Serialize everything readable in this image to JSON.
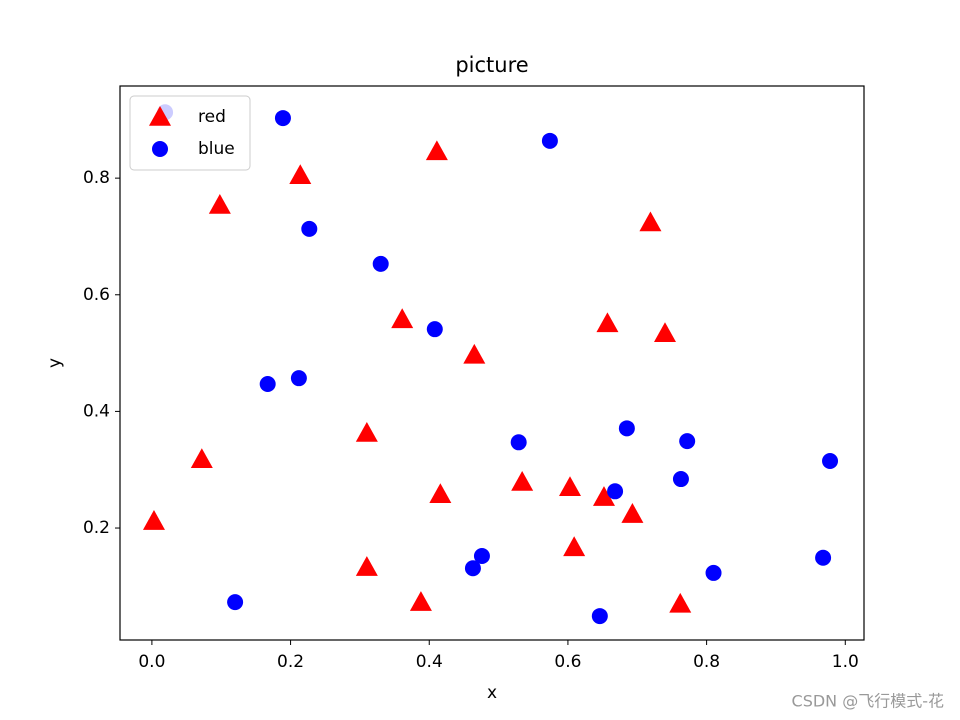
{
  "chart_data": {
    "type": "scatter",
    "title": "picture",
    "x_label": "x",
    "y_label": "y",
    "xlim": [
      -0.046,
      1.027
    ],
    "ylim": [
      0.008,
      0.958
    ],
    "xticks": [
      {
        "value": 0,
        "label": "0.0"
      },
      0.2,
      0.4,
      0.6,
      0.8,
      {
        "value": 1,
        "label": "1.0"
      }
    ],
    "yticks": [
      0.2,
      0.4,
      0.6,
      0.8
    ],
    "legend": "upper left",
    "series": [
      {
        "name": "red",
        "color": "#ff0000",
        "marker": "triangle",
        "x": [
          0.003,
          0.072,
          0.098,
          0.214,
          0.31,
          0.31,
          0.361,
          0.388,
          0.411,
          0.416,
          0.465,
          0.534,
          0.603,
          0.609,
          0.652,
          0.657,
          0.693,
          0.719,
          0.74,
          0.762
        ],
        "values": [
          0.212,
          0.318,
          0.754,
          0.805,
          0.363,
          0.133,
          0.558,
          0.073,
          0.846,
          0.258,
          0.497,
          0.279,
          0.27,
          0.167,
          0.253,
          0.551,
          0.224,
          0.724,
          0.534,
          0.07
        ]
      },
      {
        "name": "blue",
        "color": "#0000ff",
        "marker": "circle",
        "x": [
          0.019,
          0.12,
          0.167,
          0.189,
          0.212,
          0.227,
          0.33,
          0.408,
          0.463,
          0.476,
          0.529,
          0.574,
          0.646,
          0.668,
          0.685,
          0.763,
          0.772,
          0.81,
          0.968,
          0.978
        ],
        "values": [
          0.913,
          0.073,
          0.447,
          0.903,
          0.457,
          0.713,
          0.653,
          0.541,
          0.131,
          0.152,
          0.347,
          0.864,
          0.049,
          0.263,
          0.371,
          0.284,
          0.349,
          0.123,
          0.149,
          0.315
        ]
      }
    ]
  },
  "watermark": "CSDN @飞行模式-花"
}
